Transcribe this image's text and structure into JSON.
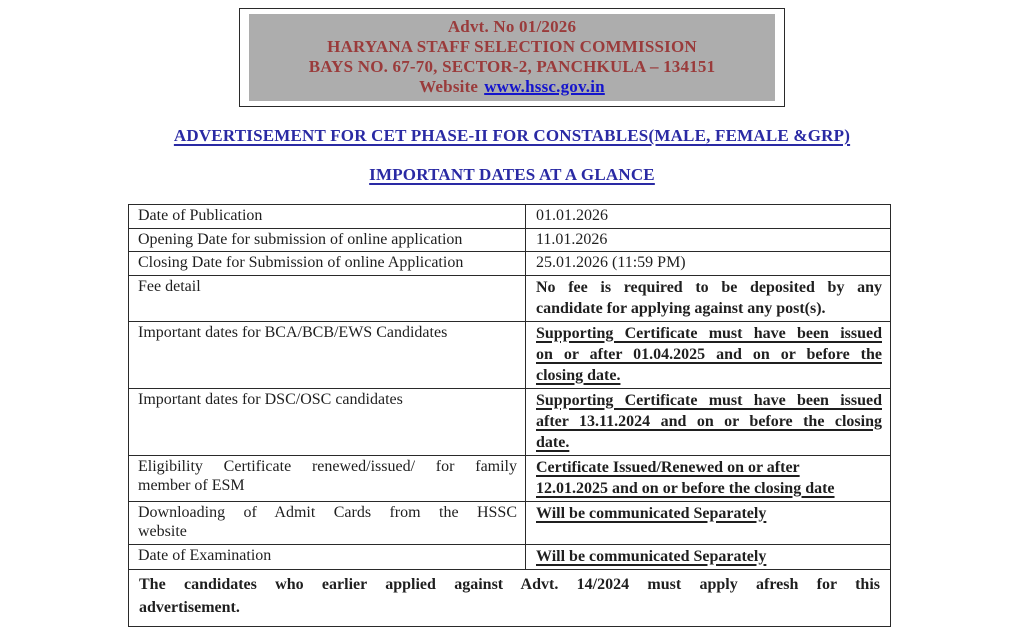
{
  "header_box": {
    "advt_no": "Advt. No 01/2026",
    "commission": "HARYANA STAFF SELECTION COMMISSION",
    "address": "BAYS NO. 67-70, SECTOR-2, PANCHKULA – 134151",
    "website_label": "Website",
    "website_url": "www.hssc.gov.in"
  },
  "titles": {
    "main": "ADVERTISEMENT FOR CET PHASE-II FOR CONSTABLES(MALE, FEMALE &GRP)",
    "sub": "IMPORTANT DATES AT A GLANCE"
  },
  "table": {
    "rows": [
      {
        "label_lines": [
          "Date of Publication"
        ],
        "label_justify": false,
        "value_lines": [
          "01.01.2026"
        ],
        "value_style": "plain",
        "value_justify": false
      },
      {
        "label_lines": [
          "Opening Date for submission of online application"
        ],
        "label_justify": false,
        "value_lines": [
          "11.01.2026"
        ],
        "value_style": "plain",
        "value_justify": false
      },
      {
        "label_lines": [
          "Closing Date for Submission of online Application"
        ],
        "label_justify": false,
        "value_lines": [
          "25.01.2026 (11:59 PM)"
        ],
        "value_style": "plain",
        "value_justify": false
      },
      {
        "label_lines": [
          "Fee detail"
        ],
        "label_justify": false,
        "value_lines": [
          "No fee is required to be deposited by any",
          "candidate for applying against any post(s)."
        ],
        "value_style": "bold",
        "value_justify": true
      },
      {
        "label_lines": [
          "Important dates for BCA/BCB/EWS Candidates"
        ],
        "label_justify": false,
        "value_lines": [
          "Supporting Certificate must have been issued",
          "on or after 01.04.2025 and on or before the",
          "closing date."
        ],
        "value_style": "bold-underline",
        "value_justify": true
      },
      {
        "label_lines": [
          "Important dates for DSC/OSC candidates"
        ],
        "label_justify": false,
        "value_lines": [
          "Supporting Certificate must have been issued",
          "after 13.11.2024 and on or before the closing",
          "date."
        ],
        "value_style": "bold-underline",
        "value_justify": true
      },
      {
        "label_lines": [
          "Eligibility Certificate renewed/issued/ for family",
          "member of ESM"
        ],
        "label_justify": true,
        "value_lines": [
          "Certificate Issued/Renewed on or after",
          "12.01.2025 and on or before the closing date"
        ],
        "value_style": "bold-underline",
        "value_justify": false
      },
      {
        "label_lines": [
          "Downloading of Admit Cards from the HSSC",
          "website"
        ],
        "label_justify": true,
        "value_lines": [
          "Will be communicated Separately"
        ],
        "value_style": "bold-underline",
        "value_justify": false
      },
      {
        "label_lines": [
          "Date of Examination"
        ],
        "label_justify": false,
        "value_lines": [
          "Will be communicated Separately"
        ],
        "value_style": "bold-underline",
        "value_justify": false
      }
    ],
    "footer_lines": [
      "The candidates who earlier applied against Advt. 14/2024 must apply afresh for this",
      "advertisement."
    ]
  },
  "colors": {
    "maroon": "#9a3b3b",
    "gray": "#adadad",
    "title-blue": "#2a2aa4",
    "link-blue": "#1515cc",
    "ink": "#1f1f1f",
    "line": "#2a2a2a"
  }
}
